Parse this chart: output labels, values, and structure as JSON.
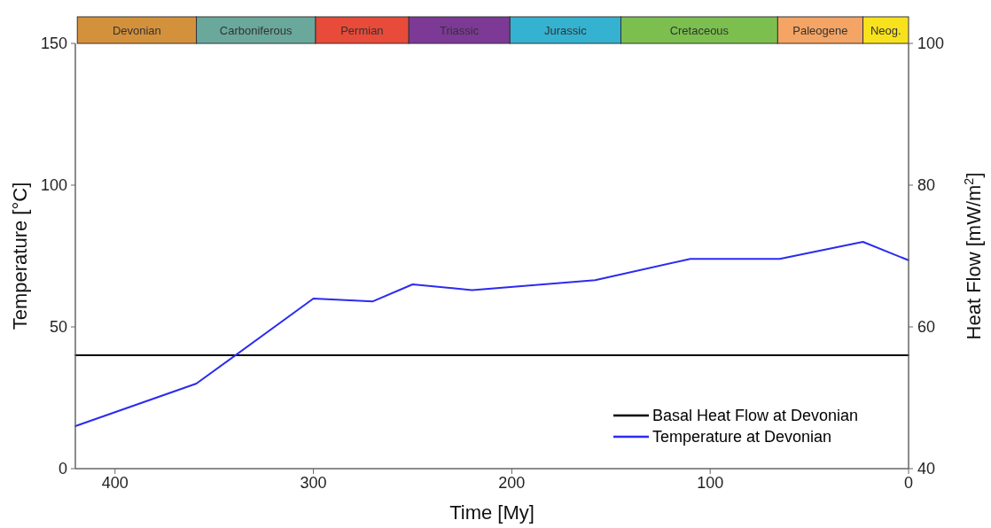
{
  "chart_data": [
    {
      "type": "bar",
      "orientation": "horizontal",
      "stacked": true,
      "categories": [
        null
      ],
      "xlim": [
        420,
        0
      ],
      "series": [
        {
          "name": "Neog.",
          "color": "#f8e21e",
          "values": [
            23
          ]
        },
        {
          "name": "Paleogene",
          "color": "#f4a465",
          "values": [
            43
          ]
        },
        {
          "name": "Cretaceous",
          "color": "#7cbf4f",
          "values": [
            79
          ]
        },
        {
          "name": "Jurassic",
          "color": "#35b2d0",
          "values": [
            56
          ]
        },
        {
          "name": "Triassic",
          "color": "#7d3996",
          "values": [
            51
          ]
        },
        {
          "name": "Permian",
          "color": "#e94b3a",
          "values": [
            47
          ]
        },
        {
          "name": "Carboniferous",
          "color": "#6aa89c",
          "values": [
            60
          ]
        },
        {
          "name": "Devonian",
          "color": "#d4913c",
          "values": [
            60
          ]
        }
      ]
    },
    {
      "type": "line",
      "xlabel": "Time [My]",
      "ylabel": "Temperature [°C]",
      "y2label": "Heat Flow [mW/m$^{2}$]",
      "xlim": [
        420,
        0
      ],
      "xticks": [
        400,
        300,
        200,
        100,
        0
      ],
      "ylim": [
        0,
        150
      ],
      "yticks": [
        0,
        50,
        100,
        150
      ],
      "y2lim": [
        40,
        100
      ],
      "y2ticks": [
        40,
        60,
        80,
        100
      ],
      "grid": false,
      "legend": "bottom right",
      "marker": "none",
      "line_style": "solid",
      "series": [
        {
          "name": "Basal Heat Flow at Devonian",
          "color": "#000000",
          "axis": "y2",
          "x": [
            420,
            0
          ],
          "values": [
            56,
            56
          ]
        },
        {
          "name": "Temperature at Devonian",
          "color": "#2b2bf0",
          "x": [
            420,
            359,
            300,
            270,
            250,
            220,
            158,
            110,
            95,
            65,
            23,
            0
          ],
          "values": [
            15,
            30,
            60,
            59,
            65,
            63,
            66.5,
            74,
            74,
            74,
            80,
            73.5
          ]
        }
      ]
    }
  ]
}
